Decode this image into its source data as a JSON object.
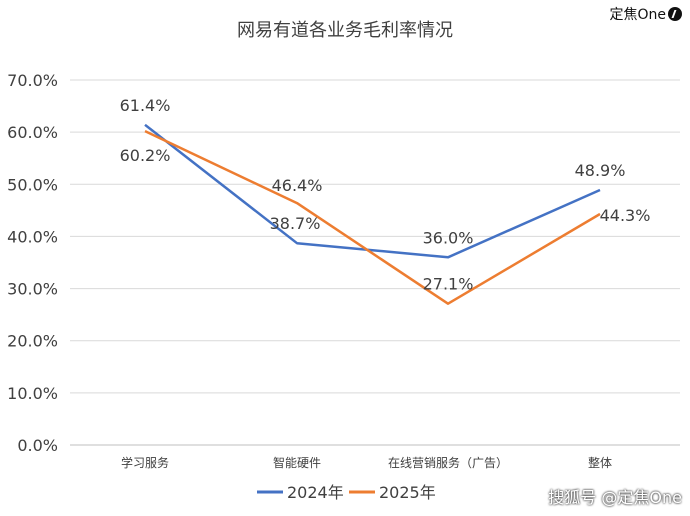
{
  "brand": {
    "text": "定焦One"
  },
  "watermark": {
    "platform": "搜狐号",
    "text": "@定焦One"
  },
  "colors": {
    "series_2024": "#4472C4",
    "series_2025": "#ED7D31",
    "grid": "#d9d9d9",
    "text": "#404040"
  },
  "chart_data": {
    "type": "line",
    "title": "网易有道各业务毛利率情况",
    "xlabel": "",
    "ylabel": "",
    "ylim": [
      0,
      70
    ],
    "yticks": [
      "0.0%",
      "10.0%",
      "20.0%",
      "30.0%",
      "40.0%",
      "50.0%",
      "60.0%",
      "70.0%"
    ],
    "categories": [
      "学习服务",
      "智能硬件",
      "在线营销服务（广告）",
      "整体"
    ],
    "series": [
      {
        "name": "2024年",
        "values": [
          61.4,
          38.7,
          36.0,
          48.9
        ],
        "labels": [
          "61.4%",
          "38.7%",
          "36.0%",
          "48.9%"
        ]
      },
      {
        "name": "2025年",
        "values": [
          60.2,
          46.4,
          27.1,
          44.3
        ],
        "labels": [
          "60.2%",
          "46.4%",
          "27.1%",
          "44.3%"
        ]
      }
    ],
    "grid": true,
    "legend": "bottom"
  }
}
